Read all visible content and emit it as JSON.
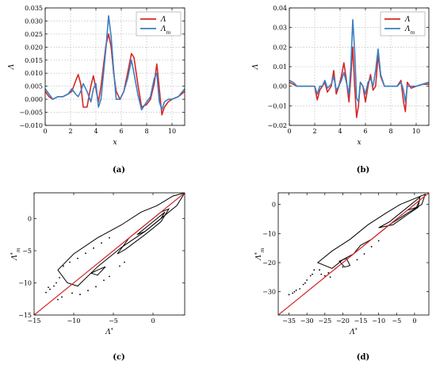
{
  "captions": [
    "(a)",
    "(b)",
    "(c)",
    "(d)"
  ],
  "chart_data": [
    {
      "type": "line",
      "xlabel": "x",
      "ylabel": "Λ",
      "xlim": [
        0,
        11
      ],
      "ylim": [
        -0.01,
        0.035
      ],
      "xticks": [
        0,
        2,
        4,
        6,
        8,
        10
      ],
      "xtick_labels": [
        "0",
        "2",
        "4",
        "6",
        "8",
        "10"
      ],
      "yticks": [
        -0.01,
        -0.005,
        0,
        0.005,
        0.01,
        0.015,
        0.02,
        0.025,
        0.03,
        0.035
      ],
      "ytick_labels": [
        "−0.010",
        "−0.005",
        "0.000",
        "0.005",
        "0.010",
        "0.015",
        "0.020",
        "0.025",
        "0.030",
        "0.035"
      ],
      "grid": true,
      "legend": "top-right",
      "series": [
        {
          "name": "Λ",
          "color": "#d62728",
          "x": [
            0,
            0.3,
            0.6,
            1.0,
            1.4,
            1.8,
            2.1,
            2.4,
            2.6,
            2.8,
            3.0,
            3.3,
            3.6,
            3.8,
            4.0,
            4.2,
            4.4,
            4.6,
            4.8,
            5.0,
            5.2,
            5.4,
            5.6,
            5.9,
            6.2,
            6.5,
            6.8,
            7.0,
            7.3,
            7.6,
            8.0,
            8.3,
            8.6,
            8.8,
            9.0,
            9.2,
            9.4,
            9.7,
            10.0,
            10.5,
            11.0
          ],
          "y": [
            0.003,
            0.001,
            0.0,
            0.001,
            0.001,
            0.002,
            0.003,
            0.007,
            0.0095,
            0.006,
            -0.003,
            -0.003,
            0.005,
            0.009,
            0.004,
            -0.001,
            0.005,
            0.013,
            0.021,
            0.025,
            0.02,
            0.01,
            0.003,
            0.0,
            0.003,
            0.01,
            0.0175,
            0.016,
            0.006,
            -0.003,
            -0.002,
            0.0,
            0.006,
            0.0135,
            0.004,
            -0.006,
            -0.003,
            -0.001,
            0.0,
            0.001,
            0.003
          ]
        },
        {
          "name": "Λ_m",
          "color": "#3a7fc1",
          "x": [
            0,
            0.3,
            0.6,
            1.0,
            1.4,
            1.8,
            2.1,
            2.4,
            2.6,
            2.8,
            3.0,
            3.3,
            3.6,
            3.8,
            4.0,
            4.2,
            4.4,
            4.6,
            4.8,
            5.0,
            5.2,
            5.4,
            5.6,
            5.9,
            6.2,
            6.5,
            6.8,
            7.0,
            7.3,
            7.6,
            8.0,
            8.3,
            8.6,
            8.8,
            9.0,
            9.2,
            9.4,
            9.7,
            10.0,
            10.5,
            11.0
          ],
          "y": [
            0.004,
            0.002,
            0.0,
            0.001,
            0.001,
            0.002,
            0.004,
            0.002,
            0.001,
            0.003,
            0.006,
            0.003,
            -0.001,
            0.004,
            0.006,
            -0.003,
            0.0,
            0.01,
            0.02,
            0.032,
            0.024,
            0.011,
            0.0,
            0.0,
            0.003,
            0.008,
            0.015,
            0.01,
            0.002,
            -0.004,
            -0.001,
            0.001,
            0.008,
            0.01,
            -0.001,
            -0.004,
            -0.001,
            0.0,
            0.0,
            0.001,
            0.004
          ]
        }
      ]
    },
    {
      "type": "line",
      "xlabel": "x",
      "ylabel": "Λ",
      "xlim": [
        0,
        11
      ],
      "ylim": [
        -0.02,
        0.04
      ],
      "xticks": [
        0,
        2,
        4,
        6,
        8,
        10
      ],
      "xtick_labels": [
        "0",
        "2",
        "4",
        "6",
        "8",
        "10"
      ],
      "yticks": [
        -0.02,
        -0.01,
        0,
        0.01,
        0.02,
        0.03,
        0.04
      ],
      "ytick_labels": [
        "−0.02",
        "−0.01",
        "0.00",
        "0.01",
        "0.02",
        "0.03",
        "0.04"
      ],
      "grid": true,
      "legend": "top-right",
      "series": [
        {
          "name": "Λ",
          "color": "#d62728",
          "x": [
            0,
            0.3,
            0.6,
            1.0,
            1.5,
            2.0,
            2.2,
            2.4,
            2.6,
            2.8,
            3.0,
            3.3,
            3.5,
            3.7,
            3.9,
            4.1,
            4.3,
            4.5,
            4.7,
            4.85,
            5.0,
            5.15,
            5.3,
            5.45,
            5.6,
            5.8,
            6.0,
            6.2,
            6.4,
            6.6,
            6.8,
            7.0,
            7.2,
            7.5,
            8.0,
            8.5,
            8.8,
            9.0,
            9.15,
            9.3,
            9.6,
            10.0,
            10.5,
            11.0
          ],
          "y": [
            0.002,
            0.001,
            0.0,
            0.0,
            0.0,
            0.0,
            -0.007,
            -0.002,
            0.0,
            0.002,
            -0.003,
            0.0,
            0.008,
            -0.004,
            0.0,
            0.005,
            0.012,
            0.003,
            -0.008,
            0.005,
            0.02,
            0.0,
            -0.016,
            -0.01,
            0.002,
            0.0,
            -0.008,
            0.0,
            0.006,
            -0.002,
            0.0,
            0.016,
            0.005,
            0.0,
            0.0,
            0.0,
            0.003,
            -0.008,
            -0.013,
            0.002,
            -0.001,
            0.0,
            0.001,
            0.001
          ]
        },
        {
          "name": "Λ_m",
          "color": "#3a7fc1",
          "x": [
            0,
            0.3,
            0.6,
            1.0,
            1.5,
            2.0,
            2.2,
            2.4,
            2.6,
            2.8,
            3.0,
            3.3,
            3.5,
            3.7,
            3.9,
            4.1,
            4.3,
            4.5,
            4.7,
            4.85,
            5.0,
            5.15,
            5.3,
            5.45,
            5.6,
            5.8,
            6.0,
            6.2,
            6.4,
            6.6,
            6.8,
            7.0,
            7.2,
            7.5,
            8.0,
            8.5,
            8.8,
            9.0,
            9.15,
            9.3,
            9.6,
            10.0,
            10.5,
            11.0
          ],
          "y": [
            0.003,
            0.002,
            0.0,
            0.0,
            0.0,
            0.0,
            -0.004,
            0.0,
            0.0,
            0.003,
            -0.001,
            0.001,
            0.005,
            -0.002,
            0.0,
            0.003,
            0.007,
            0.002,
            -0.004,
            0.01,
            0.034,
            0.018,
            -0.006,
            -0.008,
            0.002,
            0.0,
            -0.004,
            0.002,
            0.004,
            0.0,
            0.008,
            0.019,
            0.006,
            0.0,
            0.0,
            0.0,
            0.002,
            -0.002,
            -0.008,
            0.0,
            0.0,
            0.0,
            0.001,
            0.002
          ]
        }
      ]
    },
    {
      "type": "scatter",
      "xlabel": "Λ*",
      "ylabel": "Λ*_m",
      "xlim": [
        -15,
        4
      ],
      "ylim": [
        -15,
        4
      ],
      "xticks": [
        -15,
        -10,
        -5,
        0
      ],
      "xtick_labels": [
        "−15",
        "−10",
        "−5",
        "0"
      ],
      "yticks": [
        -15,
        -10,
        -5,
        0
      ],
      "ytick_labels": [
        "−15",
        "−10",
        "−5",
        "0"
      ],
      "grid": false,
      "reference_line": {
        "color": "#d62728",
        "from": [
          -15,
          -15
        ],
        "to": [
          4,
          4
        ]
      },
      "contours": [
        {
          "color": "#000000",
          "points": [
            [
              -12.0,
              -8.0
            ],
            [
              -10.0,
              -5.5
            ],
            [
              -7.0,
              -3.0
            ],
            [
              -4.0,
              -1.0
            ],
            [
              -1.5,
              1.0
            ],
            [
              0.5,
              2.0
            ],
            [
              2.5,
              3.5
            ],
            [
              4.0,
              4.0
            ],
            [
              3.0,
              2.0
            ],
            [
              1.0,
              0.0
            ],
            [
              -1.0,
              -2.0
            ],
            [
              -4.0,
              -4.5
            ],
            [
              -7.0,
              -7.5
            ],
            [
              -9.5,
              -10.5
            ],
            [
              -10.8,
              -10.0
            ],
            [
              -12.0,
              -8.0
            ]
          ]
        },
        {
          "color": "#000000",
          "points": [
            [
              -4.5,
              -5.5
            ],
            [
              -3.0,
              -3.0
            ],
            [
              -1.0,
              -1.0
            ],
            [
              1.0,
              1.0
            ],
            [
              2.0,
              1.5
            ],
            [
              1.0,
              -0.5
            ],
            [
              -1.0,
              -2.5
            ],
            [
              -3.5,
              -4.8
            ],
            [
              -4.5,
              -5.5
            ]
          ]
        },
        {
          "color": "#000000",
          "points": [
            [
              -2.0,
              -2.5
            ],
            [
              0.0,
              -0.5
            ],
            [
              1.5,
              1.0
            ],
            [
              1.0,
              0.0
            ],
            [
              -1.0,
              -2.0
            ],
            [
              -2.0,
              -2.5
            ]
          ]
        },
        {
          "color": "#000000",
          "points": [
            [
              -7.0,
              -8.0
            ],
            [
              -6.0,
              -7.5
            ],
            [
              -7.0,
              -8.8
            ],
            [
              -7.8,
              -8.5
            ],
            [
              -7.0,
              -8.0
            ]
          ]
        }
      ],
      "scatter_points": [
        [
          -13.0,
          -11.0
        ],
        [
          -12.5,
          -10.5
        ],
        [
          -13.5,
          -11.5
        ],
        [
          -12.2,
          -10.0
        ],
        [
          -13.2,
          -10.7
        ],
        [
          -11.8,
          -9.2
        ],
        [
          -11.3,
          -7.4
        ],
        [
          -10.5,
          -6.8
        ],
        [
          -9.5,
          -6.2
        ],
        [
          -8.5,
          -5.4
        ],
        [
          -7.5,
          -4.6
        ],
        [
          -6.5,
          -3.8
        ],
        [
          -5.5,
          -3.0
        ],
        [
          -10.2,
          -11.6
        ],
        [
          -9.2,
          -11.8
        ],
        [
          -8.2,
          -11.2
        ],
        [
          -7.2,
          -10.6
        ],
        [
          -6.2,
          -9.6
        ],
        [
          -5.5,
          -9.0
        ],
        [
          -11.5,
          -12.2
        ],
        [
          -12.0,
          -12.6
        ],
        [
          -4.2,
          -7.4
        ],
        [
          -3.6,
          -6.8
        ]
      ]
    },
    {
      "type": "scatter",
      "xlabel": "Λ*",
      "ylabel": "Λ*_m",
      "xlim": [
        -38,
        4
      ],
      "ylim": [
        -38,
        4
      ],
      "xticks": [
        -35,
        -30,
        -25,
        -20,
        -15,
        -10,
        -5,
        0
      ],
      "xtick_labels": [
        "−35",
        "−30",
        "−25",
        "−20",
        "−15",
        "−10",
        "−5",
        "0"
      ],
      "yticks": [
        -30,
        -20,
        -10,
        0
      ],
      "ytick_labels": [
        "−30",
        "−20",
        "−10",
        "0"
      ],
      "grid": false,
      "reference_line": {
        "color": "#d62728",
        "from": [
          -38,
          -38
        ],
        "to": [
          4,
          4
        ]
      },
      "contours": [
        {
          "color": "#000000",
          "points": [
            [
              -27.0,
              -20.0
            ],
            [
              -23.0,
              -16.0
            ],
            [
              -18.0,
              -12.0
            ],
            [
              -13.0,
              -7.0
            ],
            [
              -8.0,
              -3.0
            ],
            [
              -4.0,
              0.0
            ],
            [
              0.0,
              2.0
            ],
            [
              3.0,
              3.5
            ],
            [
              2.0,
              0.0
            ],
            [
              -2.0,
              -3.0
            ],
            [
              -7.0,
              -7.0
            ],
            [
              -12.0,
              -12.0
            ],
            [
              -15.0,
              -14.0
            ],
            [
              -17.0,
              -17.0
            ],
            [
              -20.0,
              -19.0
            ],
            [
              -23.0,
              -22.0
            ],
            [
              -27.0,
              -20.0
            ]
          ]
        },
        {
          "color": "#000000",
          "points": [
            [
              -10.0,
              -8.0
            ],
            [
              -7.0,
              -6.0
            ],
            [
              -4.0,
              -3.0
            ],
            [
              -1.0,
              0.0
            ],
            [
              1.5,
              2.5
            ],
            [
              1.0,
              -1.0
            ],
            [
              -2.0,
              -3.5
            ],
            [
              -6.0,
              -7.0
            ],
            [
              -10.0,
              -8.0
            ]
          ]
        },
        {
          "color": "#000000",
          "points": [
            [
              -2.0,
              -2.0
            ],
            [
              0.0,
              0.0
            ],
            [
              1.5,
              1.5
            ],
            [
              0.5,
              -1.0
            ],
            [
              -2.0,
              -2.0
            ]
          ]
        },
        {
          "color": "#000000",
          "points": [
            [
              -21.0,
              -19.5
            ],
            [
              -19.0,
              -18.5
            ],
            [
              -18.0,
              -21.0
            ],
            [
              -19.5,
              -21.5
            ],
            [
              -21.0,
              -19.5
            ]
          ]
        }
      ],
      "scatter_points": [
        [
          -34.0,
          -30.5
        ],
        [
          -33.0,
          -29.5
        ],
        [
          -32.0,
          -29.0
        ],
        [
          -31.0,
          -27.5
        ],
        [
          -30.0,
          -26.0
        ],
        [
          -29.0,
          -24.5
        ],
        [
          -28.0,
          -22.5
        ],
        [
          -35.0,
          -31.0
        ],
        [
          -30.5,
          -27.0
        ],
        [
          -33.5,
          -30.0
        ],
        [
          -26.0,
          -24.0
        ],
        [
          -25.0,
          -24.5
        ],
        [
          -24.0,
          -23.5
        ],
        [
          -23.5,
          -25.0
        ],
        [
          -22.0,
          -22.0
        ],
        [
          -20.0,
          -21.5
        ],
        [
          -16.0,
          -19.0
        ],
        [
          -14.0,
          -17.0
        ],
        [
          -12.0,
          -14.5
        ],
        [
          -10.0,
          -12.5
        ],
        [
          -26.5,
          -22.5
        ],
        [
          -28.5,
          -24.0
        ]
      ]
    }
  ]
}
